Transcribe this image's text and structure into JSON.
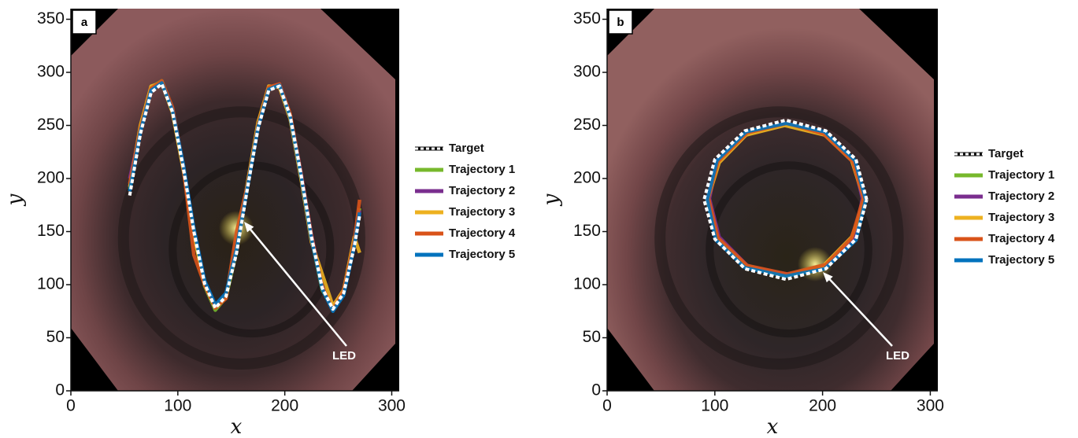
{
  "chart_data": [
    {
      "type": "line",
      "panel_label": "a",
      "x_label": "x",
      "y_label": "y",
      "annotation": "LED",
      "xlim": [
        0,
        307
      ],
      "ylim": [
        0,
        360
      ],
      "xticks": [
        0,
        100,
        200,
        300
      ],
      "yticks": [
        0,
        50,
        100,
        150,
        200,
        250,
        300,
        350
      ],
      "x": [
        55,
        65,
        75,
        85,
        95,
        105,
        115,
        125,
        135,
        145,
        155,
        165,
        175,
        185,
        195,
        205,
        215,
        225,
        235,
        245,
        255,
        265,
        270
      ],
      "series": [
        {
          "name": "Trajectory 1",
          "color": "#77b82c",
          "values": [
            190,
            248,
            286,
            292,
            265,
            210,
            148,
            99,
            76,
            88,
            132,
            194,
            252,
            286,
            288,
            257,
            202,
            143,
            95,
            78,
            94,
            140,
            172
          ]
        },
        {
          "name": "Trajectory 2",
          "color": "#7a2e8e",
          "values": [
            200,
            245,
            284,
            291,
            266,
            213,
            152,
            103,
            80,
            91,
            133,
            192,
            249,
            285,
            289,
            260,
            207,
            147,
            99,
            79,
            93,
            138,
            170
          ]
        },
        {
          "name": "Trajectory 3",
          "color": "#edb120",
          "values": [
            192,
            250,
            287,
            290,
            262,
            209,
            147,
            100,
            79,
            90,
            135,
            195,
            253,
            287,
            286,
            256,
            201,
            140,
            110,
            80,
            95,
            145,
            130
          ]
        },
        {
          "name": "Trajectory 4",
          "color": "#d95319",
          "values": [
            195,
            247,
            285,
            292,
            267,
            212,
            128,
            100,
            78,
            87,
            150,
            193,
            250,
            286,
            289,
            261,
            206,
            146,
            98,
            76,
            94,
            141,
            180
          ]
        },
        {
          "name": "Trajectory 5",
          "color": "#0072bd",
          "values": [
            188,
            244,
            283,
            290,
            264,
            214,
            153,
            104,
            81,
            92,
            134,
            191,
            248,
            284,
            288,
            258,
            204,
            143,
            96,
            75,
            90,
            137,
            168
          ]
        },
        {
          "name": "Target",
          "color": "#ffffff",
          "dashed": true,
          "values": [
            184,
            242,
            281,
            289,
            263,
            211,
            150,
            101,
            78,
            89,
            130,
            190,
            247,
            283,
            287,
            259,
            205,
            145,
            97,
            77,
            92,
            136,
            165
          ]
        }
      ]
    },
    {
      "type": "line",
      "panel_label": "b",
      "x_label": "x",
      "y_label": "y",
      "annotation": "LED",
      "xlim": [
        0,
        307
      ],
      "ylim": [
        0,
        360
      ],
      "xticks": [
        0,
        100,
        200,
        300
      ],
      "yticks": [
        0,
        50,
        100,
        150,
        200,
        250,
        300,
        350
      ],
      "series": [
        {
          "name": "Trajectory 1",
          "color": "#77b82c",
          "x": [
            238,
            228,
            201,
            166,
            130,
            103,
            94,
            103,
            130,
            166,
            201,
            228,
            238
          ],
          "values": [
            180,
            216,
            242,
            251,
            242,
            216,
            180,
            144,
            118,
            109,
            118,
            144,
            180
          ]
        },
        {
          "name": "Trajectory 2",
          "color": "#7a2e8e",
          "x": [
            237,
            229,
            200,
            165,
            131,
            102,
            95,
            104,
            131,
            167,
            202,
            229,
            237
          ],
          "values": [
            181,
            215,
            243,
            252,
            243,
            217,
            181,
            145,
            117,
            110,
            116,
            143,
            181
          ]
        },
        {
          "name": "Trajectory 3",
          "color": "#edb120",
          "x": [
            239,
            227,
            202,
            165,
            129,
            104,
            93,
            102,
            129,
            165,
            200,
            227,
            239
          ],
          "values": [
            179,
            217,
            241,
            250,
            241,
            215,
            179,
            143,
            117,
            108,
            117,
            145,
            179
          ]
        },
        {
          "name": "Trajectory 4",
          "color": "#d95319",
          "x": [
            238,
            228,
            201,
            167,
            130,
            103,
            94,
            103,
            130,
            167,
            203,
            227,
            238
          ],
          "values": [
            182,
            216,
            242,
            252,
            243,
            216,
            182,
            144,
            118,
            110,
            119,
            144,
            182
          ]
        },
        {
          "name": "Trajectory 5",
          "color": "#0072bd",
          "x": [
            240,
            230,
            202,
            166,
            129,
            102,
            93,
            101,
            128,
            166,
            202,
            231,
            240
          ],
          "values": [
            180,
            217,
            244,
            252,
            244,
            217,
            180,
            142,
            116,
            108,
            115,
            142,
            180
          ]
        },
        {
          "name": "Target",
          "color": "#ffffff",
          "dashed": true,
          "x": [
            241,
            231,
            203,
            166,
            128,
            100,
            90,
            100,
            128,
            166,
            203,
            231,
            241
          ],
          "values": [
            180,
            218,
            245,
            255,
            245,
            218,
            180,
            143,
            115,
            105,
            115,
            143,
            180
          ]
        }
      ]
    }
  ]
}
